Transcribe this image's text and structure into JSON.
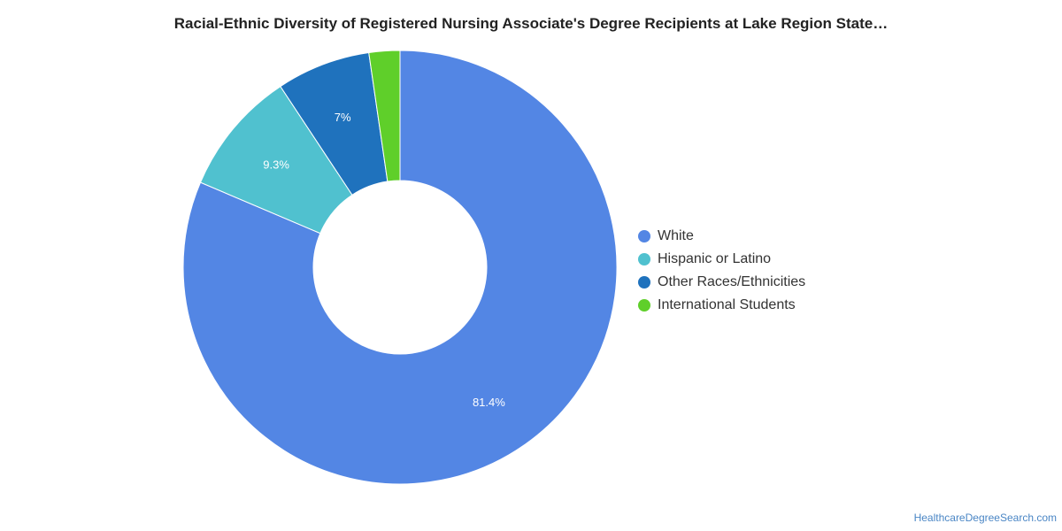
{
  "chart_data": {
    "type": "pie",
    "title": "Racial-Ethnic Diversity of Registered Nursing Associate's Degree Recipients at Lake Region State…",
    "donut": true,
    "legend_position": "right",
    "slices": [
      {
        "name": "White",
        "value": 81.4,
        "label": "81.4%",
        "color": "#5386e4"
      },
      {
        "name": "Hispanic or Latino",
        "value": 9.3,
        "label": "9.3%",
        "color": "#50c1cf"
      },
      {
        "name": "Other Races/Ethnicities",
        "value": 7.0,
        "label": "7%",
        "color": "#1f72bd"
      },
      {
        "name": "International Students",
        "value": 2.3,
        "label": "",
        "color": "#5fcf2a"
      }
    ]
  },
  "credit": "HealthcareDegreeSearch.com"
}
